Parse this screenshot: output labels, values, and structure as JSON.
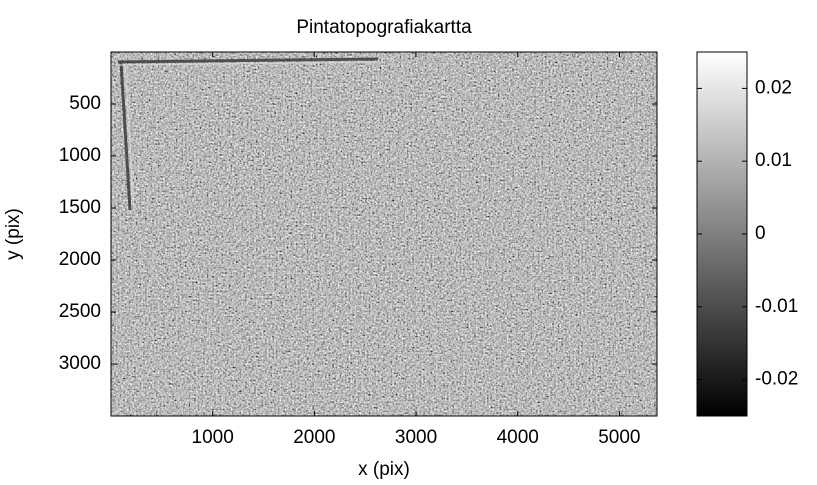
{
  "chart_data": {
    "type": "heatmap",
    "title": "Pintatopografiakartta",
    "xlabel": "x (pix)",
    "ylabel": "y (pix)",
    "xlim": [
      0,
      5370
    ],
    "xticks": [
      1000,
      2000,
      3000,
      4000,
      5000
    ],
    "ylim": [
      0,
      3500
    ],
    "yticks": [
      500,
      1000,
      1500,
      2000,
      2500,
      3000
    ],
    "y_reversed": true,
    "colormap": "gray",
    "clim": [
      -0.025,
      0.025
    ],
    "cticks": [
      -0.02,
      -0.01,
      0,
      0.01,
      0.02
    ]
  }
}
